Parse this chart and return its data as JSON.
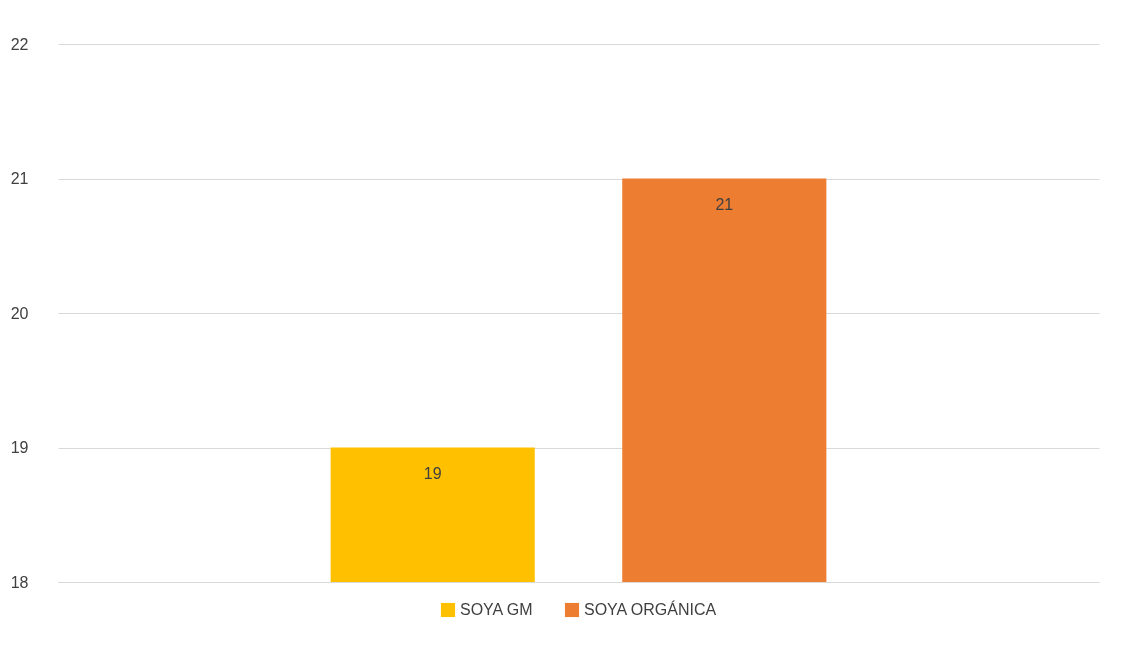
{
  "chart_data": {
    "type": "bar",
    "categories": [
      null
    ],
    "series": [
      {
        "name": "SOYA GM",
        "color": "#ffc000",
        "values": [
          19
        ]
      },
      {
        "name": "SOYA ORGÁNICA",
        "color": "#ed7d31",
        "values": [
          21
        ]
      }
    ],
    "ylim": [
      18,
      22
    ],
    "yticks": [
      18,
      19,
      20,
      21,
      22
    ],
    "grid": "y",
    "legend": "bottom",
    "data_labels": true
  }
}
